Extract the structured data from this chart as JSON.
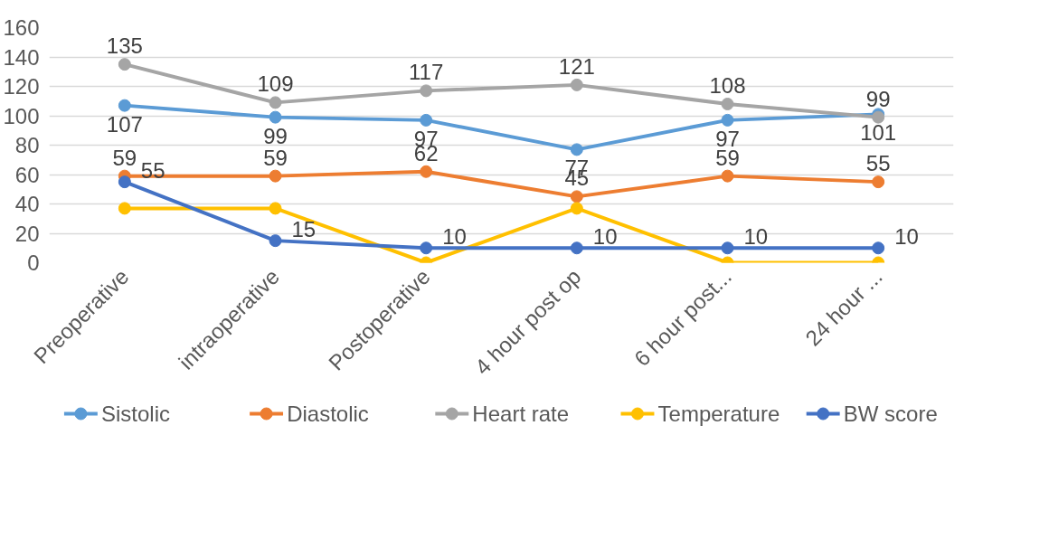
{
  "chart_data": {
    "type": "line",
    "categories": [
      "Preoperative",
      "intraoperative",
      "Postoperative",
      "4 hour post op",
      "6 hour post...",
      "24 hour ..."
    ],
    "series": [
      {
        "name": "Sistolic",
        "color": "#5b9bd5",
        "values": [
          107,
          99,
          97,
          77,
          97,
          101
        ],
        "value_labels": [
          "107",
          "99",
          "97",
          "77",
          "97",
          "101"
        ]
      },
      {
        "name": "Diastolic",
        "color": "#ed7d31",
        "values": [
          59,
          59,
          62,
          45,
          59,
          55
        ],
        "value_labels": [
          "59",
          "59",
          "62",
          "45",
          "59",
          "55"
        ]
      },
      {
        "name": "Heart rate",
        "color": "#a5a5a5",
        "values": [
          135,
          109,
          117,
          121,
          108,
          99
        ],
        "value_labels": [
          "135",
          "109",
          "117",
          "121",
          "108",
          "99"
        ]
      },
      {
        "name": "Temperature",
        "color": "#ffc000",
        "values": [
          37,
          37,
          0,
          37,
          0,
          0
        ]
      },
      {
        "name": "BW score",
        "color": "#4472c4",
        "values": [
          55,
          15,
          10,
          10,
          10,
          10
        ],
        "value_labels": [
          "55",
          "15",
          "10",
          "10",
          "10",
          "10"
        ]
      }
    ],
    "ylim": [
      0,
      160
    ],
    "yticks": [
      0,
      20,
      40,
      60,
      80,
      100,
      120,
      140,
      160
    ],
    "grid": "y",
    "legend": "bottom",
    "marker": "circle",
    "line_style": "solid"
  }
}
